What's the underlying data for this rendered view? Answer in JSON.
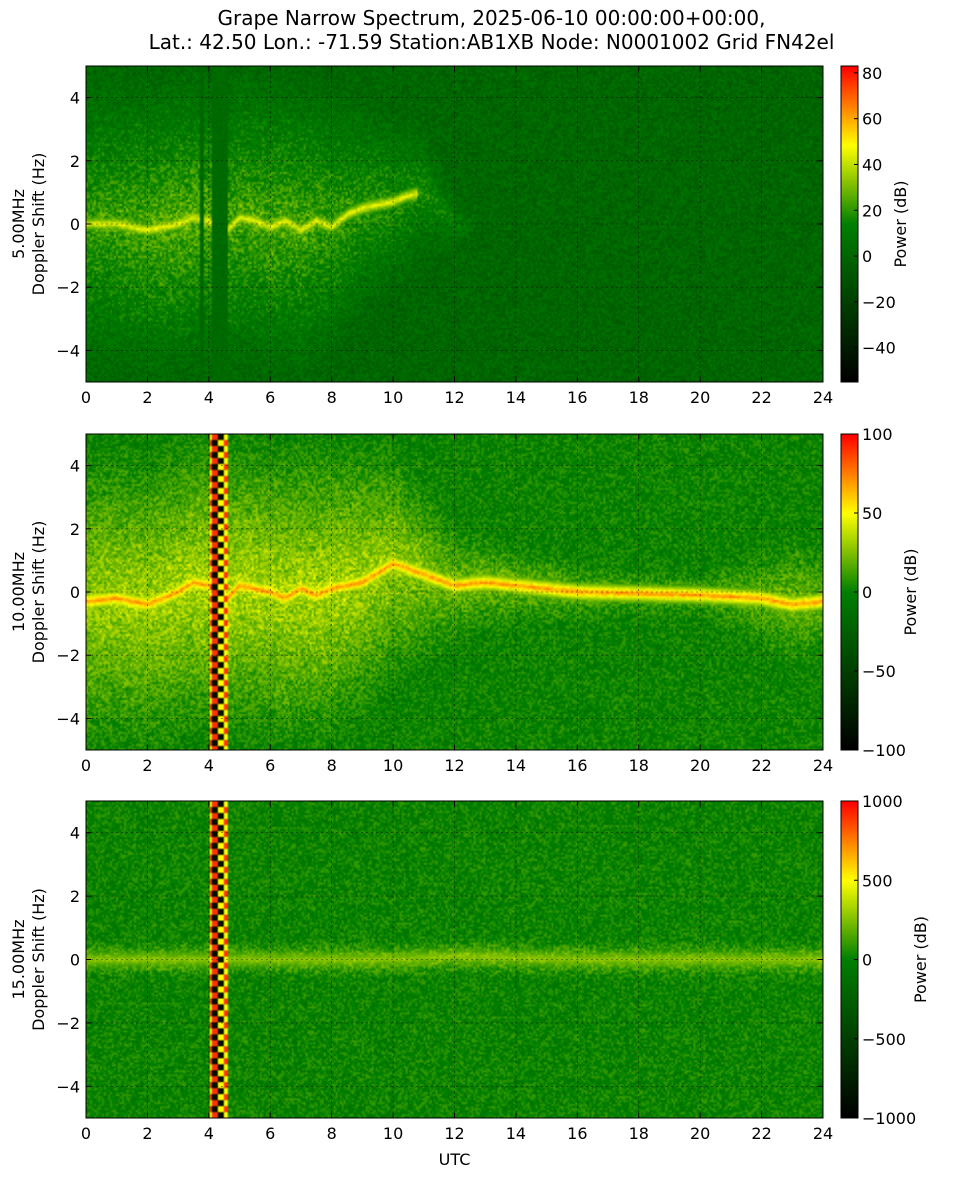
{
  "figure": {
    "title_line1": "Grape Narrow Spectrum, 2025-06-10 00:00:00+00:00,",
    "title_line2": "Lat.: 42.50 Lon.: -71.59 Station:AB1XB Node: N0001002 Grid FN42el"
  },
  "colormap": {
    "stops": [
      {
        "pos": 0.0,
        "color": "#000000"
      },
      {
        "pos": 0.5,
        "color": "#008000"
      },
      {
        "pos": 0.75,
        "color": "#ffff00"
      },
      {
        "pos": 1.0,
        "color": "#ff0000"
      }
    ]
  },
  "chart_data": [
    {
      "type": "heatmap",
      "ylabel_line1": "5.00MHz",
      "ylabel_line2": "Doppler Shift (Hz)",
      "xlabel": "",
      "xlim": [
        0,
        24
      ],
      "ylim": [
        -5,
        5
      ],
      "xticks": [
        "0",
        "2",
        "4",
        "6",
        "8",
        "10",
        "12",
        "14",
        "16",
        "18",
        "20",
        "22",
        "24"
      ],
      "yticks": [
        "−4",
        "−2",
        "0",
        "2",
        "4"
      ],
      "ytick_values": [
        -4,
        -2,
        0,
        2,
        4
      ],
      "grid": true,
      "colorbar": {
        "label": "Power (dB)",
        "range": [
          -55,
          83
        ],
        "ticks": [
          -40,
          -20,
          0,
          20,
          40,
          60,
          80
        ],
        "tick_labels": [
          "−40",
          "−20",
          "0",
          "20",
          "40",
          "60",
          "80"
        ]
      },
      "features": {
        "background_db": 0,
        "doppler_trace": {
          "x": [
            0.0,
            1.0,
            2.0,
            2.5,
            3.0,
            3.5,
            4.0,
            4.5,
            5.0,
            5.5,
            6.0,
            6.5,
            7.0,
            7.5,
            8.0,
            8.5,
            9.0,
            9.5,
            10.0,
            10.5,
            11.0,
            12.0,
            14.0,
            18.0,
            24.0
          ],
          "y": [
            0.0,
            0.0,
            -0.2,
            -0.1,
            0.0,
            0.2,
            0.1,
            -0.3,
            0.2,
            0.1,
            -0.1,
            0.1,
            -0.2,
            0.1,
            -0.1,
            0.3,
            0.5,
            0.6,
            0.7,
            0.9,
            1.0,
            0.0,
            0.0,
            0.0,
            0.0
          ],
          "x_end": 10.8,
          "peak_db": 75
        },
        "spread_envelope": {
          "x": [
            0.0,
            1.0,
            2.0,
            3.0,
            4.0,
            5.0,
            6.0,
            7.0,
            8.0,
            9.0,
            10.0,
            11.0,
            12.0,
            13.0
          ],
          "halfwidth_hz": [
            5.0,
            5.0,
            5.0,
            5.0,
            5.0,
            5.0,
            5.0,
            5.0,
            4.5,
            3.5,
            3.0,
            2.2,
            1.0,
            0.0
          ],
          "db": [
            30,
            32,
            35,
            38,
            36,
            34,
            35,
            34,
            30,
            28,
            26,
            22,
            15,
            0
          ]
        },
        "gaps": [
          {
            "x0": 3.72,
            "x1": 3.84,
            "style": "flat",
            "db": 0
          },
          {
            "x0": 4.1,
            "x1": 4.6,
            "style": "flat",
            "db": 3
          }
        ]
      }
    },
    {
      "type": "heatmap",
      "ylabel_line1": "10.00MHz",
      "ylabel_line2": "Doppler Shift (Hz)",
      "xlabel": "",
      "xlim": [
        0,
        24
      ],
      "ylim": [
        -5,
        5
      ],
      "xticks": [
        "0",
        "2",
        "4",
        "6",
        "8",
        "10",
        "12",
        "14",
        "16",
        "18",
        "20",
        "22",
        "24"
      ],
      "yticks": [
        "−4",
        "−2",
        "0",
        "2",
        "4"
      ],
      "ytick_values": [
        -4,
        -2,
        0,
        2,
        4
      ],
      "grid": true,
      "colorbar": {
        "label": "Power (dB)",
        "range": [
          -100,
          100
        ],
        "ticks": [
          -100,
          -50,
          0,
          50,
          100
        ],
        "tick_labels": [
          "−100",
          "−50",
          "0",
          "50",
          "100"
        ]
      },
      "features": {
        "background_db": 0,
        "doppler_trace": {
          "x": [
            0.0,
            1.0,
            2.0,
            2.5,
            3.0,
            3.5,
            4.0,
            4.5,
            5.0,
            5.5,
            6.0,
            6.5,
            7.0,
            7.5,
            8.0,
            8.5,
            9.0,
            9.5,
            10.0,
            12.0,
            13.0,
            16.0,
            20.0,
            22.0,
            23.0,
            24.0
          ],
          "y": [
            -0.3,
            -0.2,
            -0.4,
            -0.2,
            0.0,
            0.3,
            0.2,
            -0.3,
            0.2,
            0.1,
            0.0,
            -0.2,
            0.1,
            -0.1,
            0.1,
            0.2,
            0.3,
            0.6,
            0.9,
            0.2,
            0.3,
            0.0,
            -0.1,
            -0.2,
            -0.4,
            -0.3
          ],
          "x_end": 24.0,
          "peak_db": 80
        },
        "spread_envelope": {
          "x": [
            0.0,
            2.0,
            4.0,
            6.0,
            8.0,
            10.0,
            11.0,
            12.0,
            14.0,
            16.0,
            18.0,
            20.0,
            22.0,
            23.0,
            24.0
          ],
          "halfwidth_hz": [
            5.0,
            5.0,
            5.0,
            5.0,
            5.0,
            4.0,
            3.0,
            2.0,
            1.4,
            1.0,
            0.8,
            0.8,
            1.6,
            2.2,
            1.8
          ],
          "db": [
            30,
            32,
            35,
            34,
            34,
            30,
            25,
            22,
            20,
            18,
            16,
            15,
            20,
            22,
            20
          ]
        },
        "gaps": [
          {
            "x0": 4.05,
            "x1": 4.65,
            "style": "striped",
            "db": 0
          }
        ]
      }
    },
    {
      "type": "heatmap",
      "ylabel_line1": "15.00MHz",
      "ylabel_line2": "Doppler Shift (Hz)",
      "xlabel": "UTC",
      "xlim": [
        0,
        24
      ],
      "ylim": [
        -5,
        5
      ],
      "xticks": [
        "0",
        "2",
        "4",
        "6",
        "8",
        "10",
        "12",
        "14",
        "16",
        "18",
        "20",
        "22",
        "24"
      ],
      "yticks": [
        "−4",
        "−2",
        "0",
        "2",
        "4"
      ],
      "ytick_values": [
        -4,
        -2,
        0,
        2,
        4
      ],
      "grid": true,
      "colorbar": {
        "label": "Power (dB)",
        "range": [
          -1000,
          1000
        ],
        "ticks": [
          -1000,
          -500,
          0,
          500,
          1000
        ],
        "tick_labels": [
          "−1000",
          "−500",
          "0",
          "500",
          "1000"
        ]
      },
      "features": {
        "background_db": 0,
        "doppler_trace": {
          "x": [
            0.0,
            4.0,
            6.0,
            10.0,
            12.0,
            16.0,
            20.0,
            24.0
          ],
          "y": [
            0.0,
            0.0,
            0.0,
            0.0,
            0.1,
            0.0,
            0.0,
            0.0
          ],
          "x_end": 24.0,
          "peak_db": 30
        },
        "spread_envelope": {
          "x": [
            0.0,
            6.0,
            12.0,
            18.0,
            24.0
          ],
          "halfwidth_hz": [
            0.6,
            0.6,
            0.6,
            0.6,
            0.6
          ],
          "db": [
            20,
            18,
            22,
            20,
            22
          ]
        },
        "gaps": [
          {
            "x0": 4.05,
            "x1": 4.65,
            "style": "striped",
            "db": 0
          }
        ]
      }
    }
  ]
}
